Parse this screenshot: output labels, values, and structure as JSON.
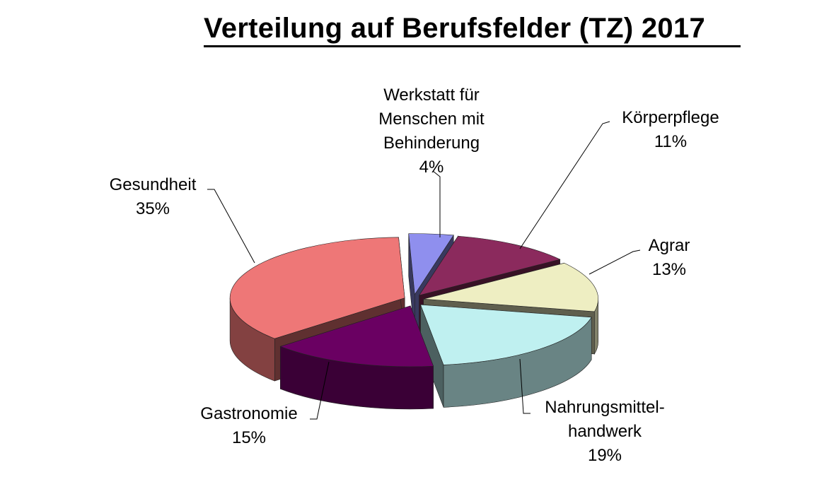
{
  "chart_data": {
    "type": "pie",
    "title": "Verteilung auf Berufsfelder (TZ)  2017",
    "slices": [
      {
        "label": [
          "Werkstatt für",
          "Menschen mit",
          "Behinderung"
        ],
        "value": 4,
        "value_label": "4%",
        "color": "#8f8fee"
      },
      {
        "label": [
          "Körperpflege"
        ],
        "value": 11,
        "value_label": "11%",
        "color": "#8b2a5d"
      },
      {
        "label": [
          "Agrar"
        ],
        "value": 13,
        "value_label": "13%",
        "color": "#eeeec2"
      },
      {
        "label": [
          "Nahrungsmittel-",
          "handwerk"
        ],
        "value": 19,
        "value_label": "19%",
        "color": "#bff0f0"
      },
      {
        "label": [
          "Gastronomie"
        ],
        "value": 15,
        "value_label": "15%",
        "color": "#6a0062"
      },
      {
        "label": [
          "Gesundheit"
        ],
        "value": 35,
        "value_label": "35%",
        "color": "#ee7777"
      }
    ],
    "style": "3d-exploded",
    "legend": "none"
  }
}
